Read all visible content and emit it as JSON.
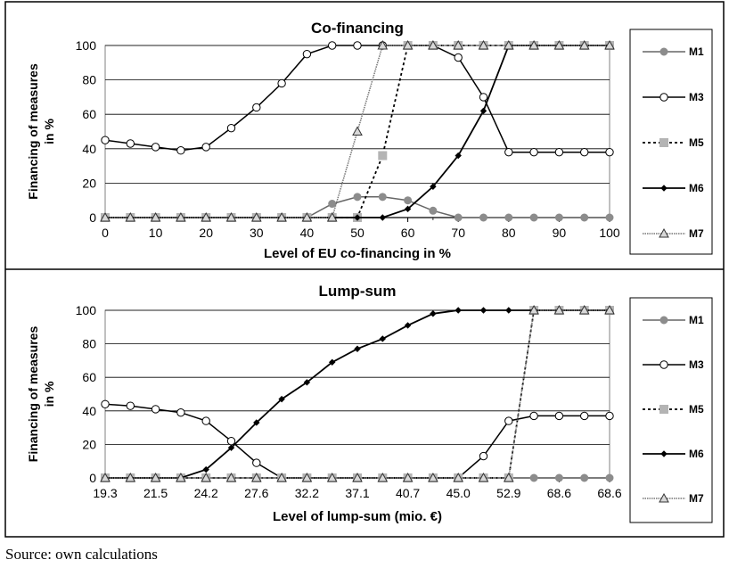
{
  "figure": {
    "source_note": "Source: own calculations",
    "legend_entries": [
      "M1",
      "M3",
      "M5",
      "M6",
      "M7"
    ],
    "series_colors": {
      "M1": "#888888",
      "M3": "#000000",
      "M5": "#b0b0b0",
      "M6": "#000000",
      "M7": "#999999"
    }
  },
  "chart_data": [
    {
      "type": "line",
      "title": "Co-financing",
      "xlabel": "Level of EU co-financing in %",
      "ylabel": "Financing of measures in %",
      "ylabel_lines": [
        "Financing of measures",
        "in %"
      ],
      "x": [
        0,
        5,
        10,
        15,
        20,
        25,
        30,
        35,
        40,
        45,
        50,
        55,
        60,
        65,
        70,
        75,
        80,
        85,
        90,
        95,
        100
      ],
      "xticks": [
        "0",
        "10",
        "20",
        "30",
        "40",
        "50",
        "60",
        "70",
        "80",
        "90",
        "100"
      ],
      "ylim": [
        0,
        100
      ],
      "yticks": [
        "0",
        "20",
        "40",
        "60",
        "80",
        "100"
      ],
      "grid": true,
      "legend_position": "right",
      "series": [
        {
          "name": "M1",
          "values": [
            0,
            0,
            0,
            0,
            0,
            0,
            0,
            0,
            0,
            8,
            12,
            12,
            10,
            4,
            0,
            0,
            0,
            0,
            0,
            0,
            0
          ]
        },
        {
          "name": "M3",
          "values": [
            45,
            43,
            41,
            39,
            41,
            52,
            64,
            78,
            95,
            100,
            100,
            100,
            100,
            100,
            93,
            70,
            38,
            38,
            38,
            38,
            38
          ]
        },
        {
          "name": "M5",
          "values": [
            0,
            0,
            0,
            0,
            0,
            0,
            0,
            0,
            0,
            0,
            0,
            36,
            100,
            100,
            100,
            100,
            100,
            100,
            100,
            100,
            100
          ]
        },
        {
          "name": "M6",
          "values": [
            0,
            0,
            0,
            0,
            0,
            0,
            0,
            0,
            0,
            0,
            0,
            0,
            5,
            18,
            36,
            62,
            100,
            100,
            100,
            100,
            100
          ]
        },
        {
          "name": "M7",
          "values": [
            0,
            0,
            0,
            0,
            0,
            0,
            0,
            0,
            0,
            0,
            50,
            100,
            100,
            100,
            100,
            100,
            100,
            100,
            100,
            100,
            100
          ]
        }
      ]
    },
    {
      "type": "line",
      "title": "Lump-sum",
      "xlabel": "Level of lump-sum (mio. €)",
      "ylabel": "Financing of measures in %",
      "ylabel_lines": [
        "Financing of measures",
        "in %"
      ],
      "categories_count": 21,
      "xticks": [
        "19.3",
        "21.5",
        "24.2",
        "27.6",
        "32.2",
        "37.1",
        "40.7",
        "45.0",
        "52.9",
        "68.6",
        "68.6"
      ],
      "ylim": [
        0,
        100
      ],
      "yticks": [
        "0",
        "20",
        "40",
        "60",
        "80",
        "100"
      ],
      "grid": true,
      "legend_position": "right",
      "series": [
        {
          "name": "M1",
          "values": [
            0,
            0,
            0,
            0,
            0,
            0,
            0,
            0,
            0,
            0,
            0,
            0,
            0,
            0,
            0,
            0,
            0,
            0,
            0,
            0,
            0
          ]
        },
        {
          "name": "M3",
          "values": [
            44,
            43,
            41,
            39,
            34,
            22,
            9,
            0,
            0,
            0,
            0,
            0,
            0,
            0,
            0,
            13,
            34,
            37,
            37,
            37,
            37
          ]
        },
        {
          "name": "M5",
          "values": [
            0,
            0,
            0,
            0,
            0,
            0,
            0,
            0,
            0,
            0,
            0,
            0,
            0,
            0,
            0,
            0,
            0,
            100,
            100,
            100,
            100
          ]
        },
        {
          "name": "M6",
          "values": [
            0,
            0,
            0,
            0,
            5,
            18,
            33,
            47,
            57,
            69,
            77,
            83,
            91,
            98,
            100,
            100,
            100,
            100,
            100,
            100,
            100
          ]
        },
        {
          "name": "M7",
          "values": [
            0,
            0,
            0,
            0,
            0,
            0,
            0,
            0,
            0,
            0,
            0,
            0,
            0,
            0,
            0,
            0,
            0,
            100,
            100,
            100,
            100
          ]
        }
      ]
    }
  ]
}
